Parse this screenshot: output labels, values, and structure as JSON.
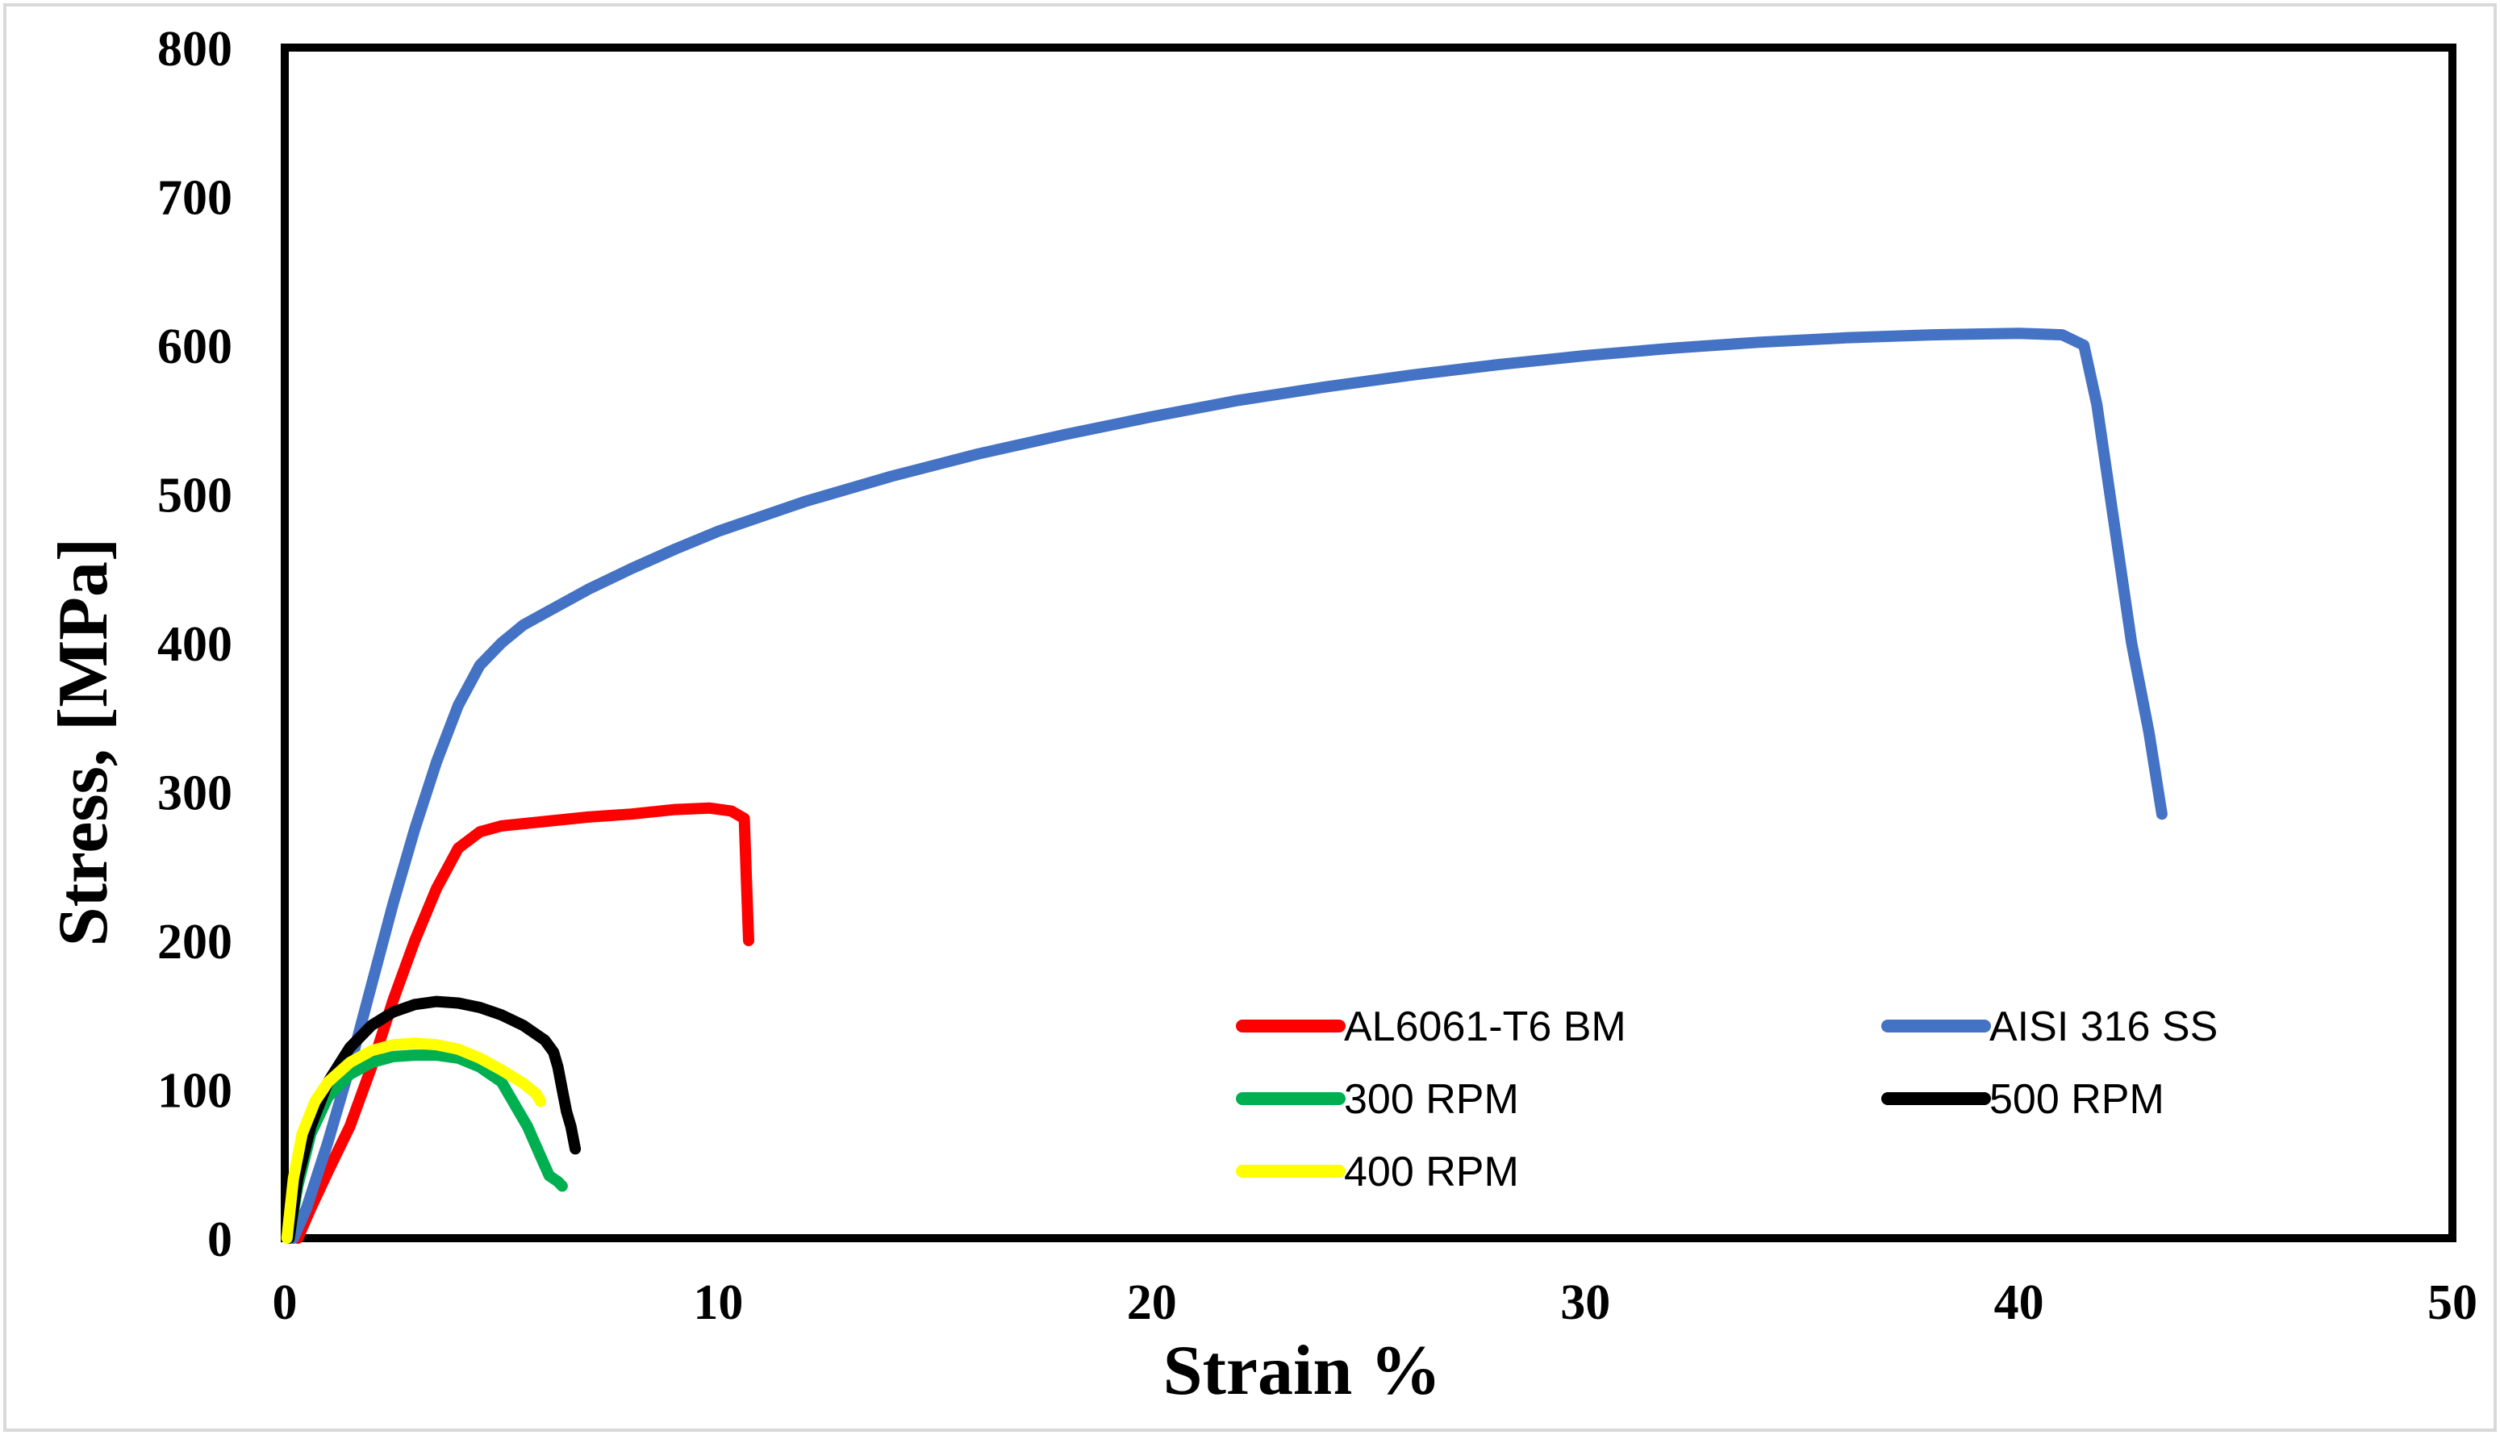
{
  "chart_data": {
    "type": "line",
    "title": "",
    "xlabel": "Strain %",
    "ylabel": "Stress, [MPa]",
    "xlim": [
      0,
      50
    ],
    "ylim": [
      0,
      800
    ],
    "xticks": [
      "0",
      "10",
      "20",
      "30",
      "40",
      "50"
    ],
    "yticks": [
      "0",
      "100",
      "200",
      "300",
      "400",
      "500",
      "600",
      "700",
      "800"
    ],
    "grid": false,
    "legend_position": "bottom-right",
    "series": [
      {
        "name": "AL6061-T6 BM",
        "color": "#ff0000",
        "x": [
          0.3,
          0.6,
          1.0,
          1.5,
          2.0,
          2.5,
          3.0,
          3.5,
          4.0,
          4.5,
          5.0,
          6.0,
          7.0,
          8.0,
          9.0,
          9.8,
          10.3,
          10.6,
          10.65,
          10.7
        ],
        "y": [
          0,
          20,
          45,
          75,
          115,
          160,
          200,
          235,
          262,
          273,
          277,
          280,
          283,
          285,
          288,
          289,
          287,
          282,
          240,
          200
        ]
      },
      {
        "name": "AISI 316 SS",
        "color": "#4472c4",
        "x": [
          0.2,
          0.5,
          1.0,
          1.5,
          2.0,
          2.5,
          3.0,
          3.5,
          4.0,
          4.5,
          5.0,
          5.5,
          6.0,
          7.0,
          8.0,
          9.0,
          10.0,
          12.0,
          14.0,
          16.0,
          18.0,
          20.0,
          22.0,
          24.0,
          26.0,
          28.0,
          30.0,
          32.0,
          34.0,
          36.0,
          38.0,
          40.0,
          41.0,
          41.5,
          41.8,
          42.2,
          42.6,
          43.0,
          43.3
        ],
        "y": [
          0,
          20,
          65,
          115,
          170,
          225,
          275,
          320,
          358,
          385,
          400,
          412,
          420,
          436,
          450,
          463,
          475,
          495,
          512,
          527,
          540,
          552,
          563,
          572,
          580,
          587,
          593,
          598,
          602,
          605,
          607,
          608,
          607,
          600,
          560,
          480,
          400,
          340,
          285
        ]
      },
      {
        "name": "300 RPM",
        "color": "#00b050",
        "x": [
          0.1,
          0.3,
          0.6,
          1.0,
          1.5,
          2.0,
          2.5,
          3.0,
          3.5,
          4.0,
          4.5,
          5.0,
          5.3,
          5.6,
          5.9,
          6.1,
          6.3,
          6.4
        ],
        "y": [
          0,
          35,
          70,
          95,
          110,
          118,
          122,
          123,
          123,
          121,
          115,
          105,
          90,
          75,
          55,
          42,
          38,
          35
        ]
      },
      {
        "name": "500 RPM",
        "color": "#000000",
        "x": [
          0.1,
          0.3,
          0.6,
          1.0,
          1.5,
          2.0,
          2.5,
          3.0,
          3.5,
          4.0,
          4.5,
          5.0,
          5.5,
          6.0,
          6.2,
          6.3,
          6.4,
          6.5,
          6.6,
          6.7
        ],
        "y": [
          0,
          40,
          75,
          105,
          128,
          143,
          152,
          157,
          159,
          158,
          155,
          150,
          143,
          133,
          125,
          115,
          100,
          85,
          75,
          60
        ]
      },
      {
        "name": "400 RPM",
        "color": "#ffff00",
        "x": [
          0.05,
          0.2,
          0.4,
          0.7,
          1.0,
          1.5,
          2.0,
          2.5,
          3.0,
          3.5,
          4.0,
          4.5,
          5.0,
          5.5,
          5.8,
          5.9
        ],
        "y": [
          0,
          40,
          70,
          92,
          105,
          118,
          126,
          130,
          131,
          130,
          127,
          121,
          113,
          104,
          97,
          92
        ]
      }
    ],
    "legend": [
      {
        "series": 0,
        "label": "AL6061-T6 BM"
      },
      {
        "series": 1,
        "label": "AISI 316 SS"
      },
      {
        "series": 2,
        "label": "300 RPM"
      },
      {
        "series": 3,
        "label": "500 RPM"
      },
      {
        "series": 4,
        "label": "400 RPM"
      }
    ]
  }
}
